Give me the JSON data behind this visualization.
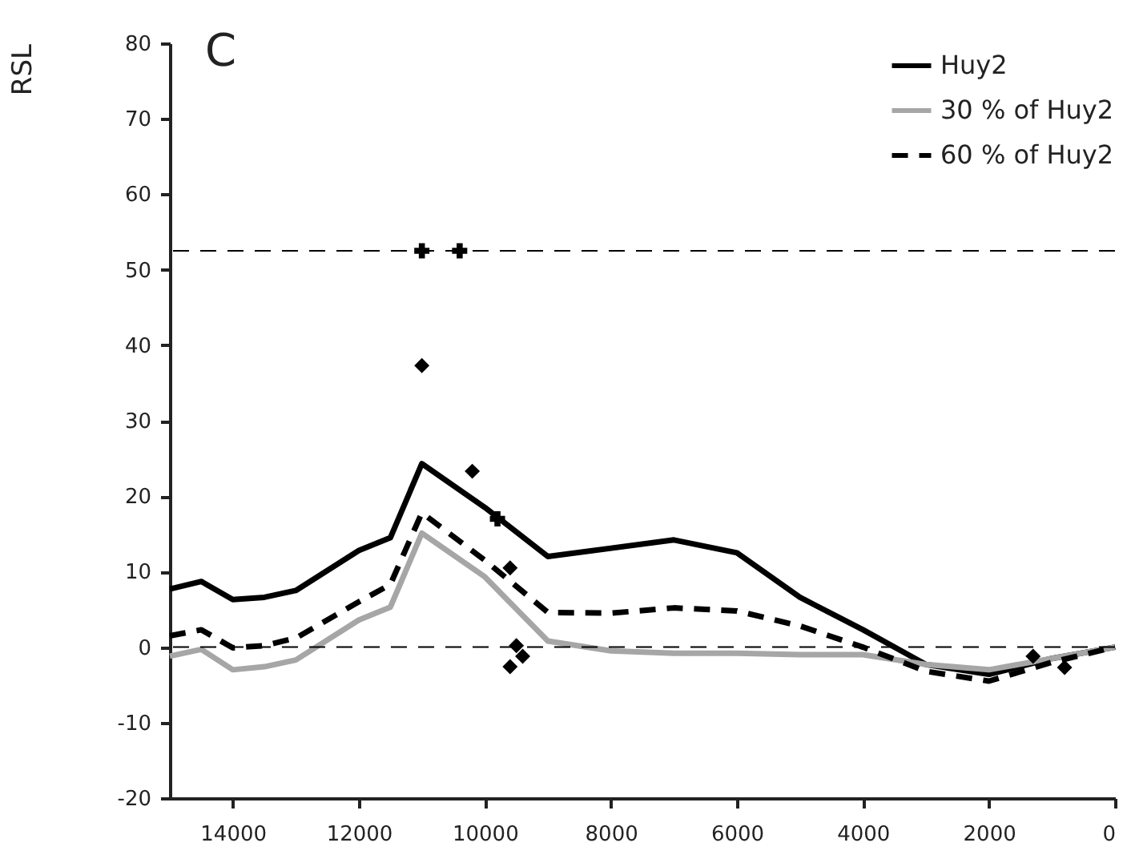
{
  "chart_data": {
    "type": "line",
    "ylabel": "RSL",
    "annotations": [
      "C"
    ],
    "xlim": [
      15000,
      0
    ],
    "xticks": [
      14000,
      12000,
      10000,
      8000,
      6000,
      4000,
      2000,
      0
    ],
    "ylim": [
      -20,
      80
    ],
    "yticks": [
      -20,
      -10,
      0,
      10,
      20,
      30,
      40,
      50,
      60,
      70,
      80
    ],
    "grid": false,
    "legend": "top right",
    "series": [
      {
        "name": "Huy2",
        "color": "#000000",
        "line_style": "solid",
        "x": [
          15000,
          14500,
          14000,
          13500,
          13000,
          12000,
          11500,
          11000,
          10000,
          9000,
          7000,
          6000,
          5000,
          4000,
          3000,
          2000,
          1000,
          0
        ],
        "values": [
          7.7,
          8.7,
          6.3,
          6.6,
          7.5,
          12.8,
          14.5,
          24.3,
          18.5,
          12,
          14.2,
          12.5,
          6.6,
          2.3,
          -2.3,
          -3.6,
          -1.5,
          0
        ]
      },
      {
        "name": "30 % of Huy2",
        "color": "#a6a6a6",
        "line_style": "solid",
        "x": [
          15000,
          14500,
          14000,
          13500,
          13000,
          12000,
          11500,
          11000,
          10000,
          9000,
          8000,
          7000,
          6000,
          5000,
          4000,
          3000,
          2000,
          1000,
          0
        ],
        "values": [
          -1.2,
          -0.3,
          -3,
          -2.6,
          -1.7,
          3.6,
          5.3,
          15.1,
          9.3,
          0.8,
          -0.5,
          -0.8,
          -0.8,
          -1,
          -1,
          -2.3,
          -3,
          -1.5,
          0
        ]
      },
      {
        "name": "60 % of Huy2",
        "color": "#000000",
        "line_style": "dashed",
        "x": [
          15000,
          14500,
          14000,
          13500,
          13000,
          12000,
          11500,
          11000,
          10000,
          9000,
          8000,
          7000,
          6000,
          5000,
          4000,
          3000,
          2000,
          1000,
          0
        ],
        "values": [
          1.5,
          2.3,
          -0.1,
          0.2,
          1.2,
          6,
          8.3,
          17.8,
          11.5,
          4.6,
          4.5,
          5.2,
          4.8,
          2.8,
          0,
          -3.2,
          -4.5,
          -2,
          0
        ]
      },
      {
        "type": "scatter",
        "marker": "diamond",
        "color": "#000000",
        "x": [
          11000,
          10200,
          9600,
          9500,
          9400,
          9600,
          1300,
          800
        ],
        "values": [
          37.3,
          23.3,
          10.5,
          0.2,
          -1.2,
          -2.6,
          -1.2,
          -2.7
        ]
      },
      {
        "type": "scatter",
        "marker": "cross",
        "color": "#000000",
        "x": [
          11000,
          10400,
          9800
        ],
        "values": [
          52.5,
          52.5,
          17
        ]
      }
    ],
    "ref_lines": [
      {
        "axis": "y",
        "value": 52.5,
        "line_style": "dashed",
        "color": "#000000"
      },
      {
        "axis": "y",
        "value": 0,
        "line_style": "dashed",
        "color": "#000000"
      }
    ]
  }
}
